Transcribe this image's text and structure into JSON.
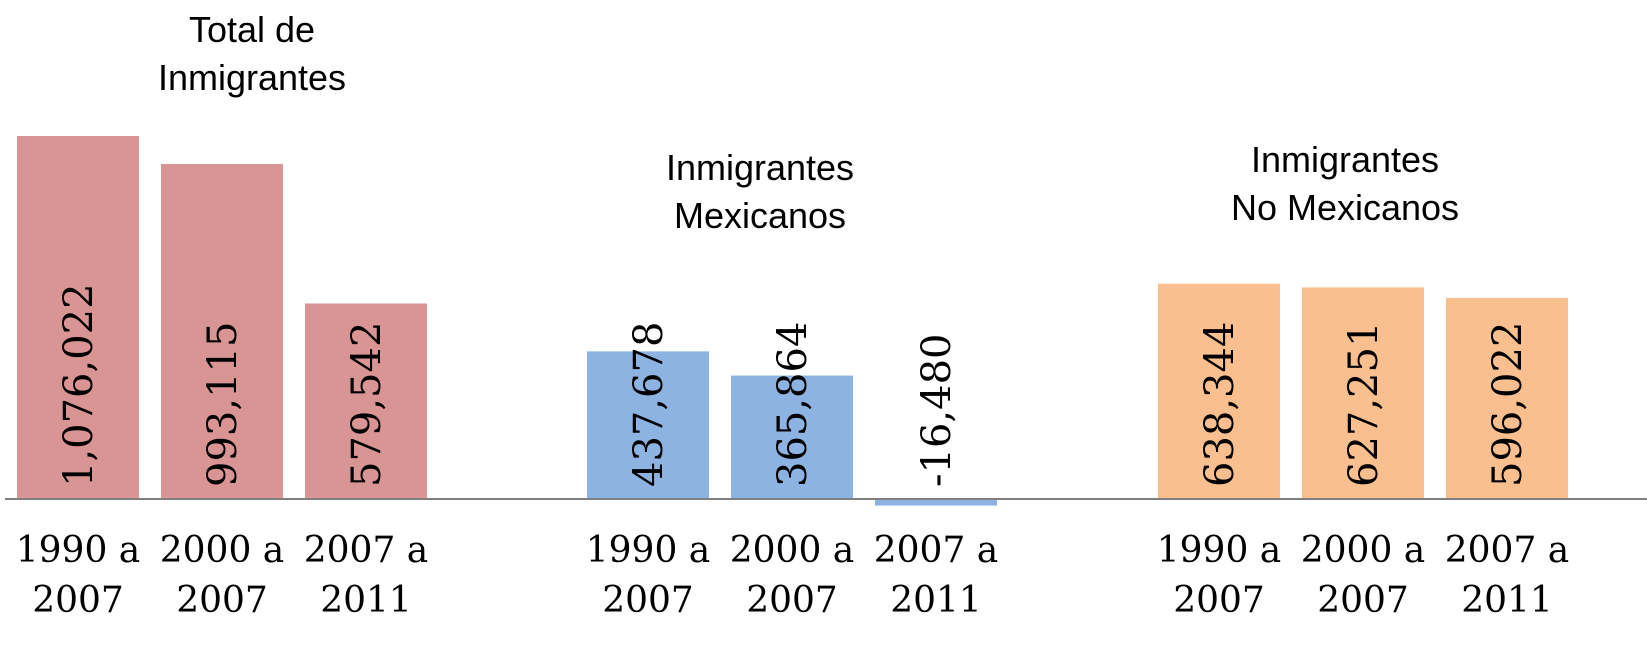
{
  "chart_data": {
    "type": "bar",
    "title": "",
    "xlabel": "",
    "ylabel": "",
    "ylim": [
      -20000,
      1100000
    ],
    "grid": false,
    "legend": "none",
    "groups": [
      {
        "title_lines": [
          "Total de",
          "Inmigrantes"
        ],
        "color": "#d99594",
        "categories": [
          [
            "1990 a",
            "2007"
          ],
          [
            "2000 a",
            "2007"
          ],
          [
            "2007 a",
            "2011"
          ]
        ],
        "values": [
          1076022,
          993115,
          579542
        ],
        "value_labels": [
          "1,076,022",
          "993,115",
          "579,542"
        ]
      },
      {
        "title_lines": [
          "Inmigrantes",
          "Mexicanos"
        ],
        "color": "#8db3e2",
        "categories": [
          [
            "1990 a",
            "2007"
          ],
          [
            "2000 a",
            "2007"
          ],
          [
            "2007 a",
            "2011"
          ]
        ],
        "values": [
          437678,
          365864,
          -16480
        ],
        "value_labels": [
          "437,678",
          "365,864",
          "-16,480"
        ]
      },
      {
        "title_lines": [
          "Inmigrantes",
          "No Mexicanos"
        ],
        "color": "#fabf8f",
        "categories": [
          [
            "1990 a",
            "2007"
          ],
          [
            "2000 a",
            "2007"
          ],
          [
            "2007 a",
            "2011"
          ]
        ],
        "values": [
          638344,
          627251,
          596022
        ],
        "value_labels": [
          "638,344",
          "627,251",
          "596,022"
        ]
      }
    ],
    "axis_color": "#808080"
  }
}
